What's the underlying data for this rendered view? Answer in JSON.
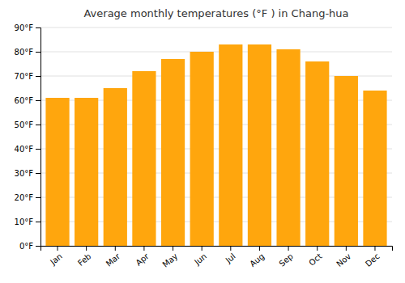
{
  "chart_data": {
    "type": "bar",
    "title": "Average monthly temperatures (°F ) in Chang-hua",
    "categories": [
      "Jan",
      "Feb",
      "Mar",
      "Apr",
      "May",
      "Jun",
      "Jul",
      "Aug",
      "Sep",
      "Oct",
      "Nov",
      "Dec"
    ],
    "values": [
      61,
      61,
      65,
      72,
      77,
      80,
      83,
      83,
      81,
      76,
      70,
      64
    ],
    "color": "#ffa60d",
    "ylim": [
      0,
      90
    ],
    "yticks": [
      {
        "value": 0,
        "label": "0°F"
      },
      {
        "value": 10,
        "label": "10°F"
      },
      {
        "value": 20,
        "label": "20°F"
      },
      {
        "value": 30,
        "label": "30°F"
      },
      {
        "value": 40,
        "label": "40°F"
      },
      {
        "value": 50,
        "label": "50°F"
      },
      {
        "value": 60,
        "label": "60°F"
      },
      {
        "value": 70,
        "label": "70°F"
      },
      {
        "value": 80,
        "label": "80°F"
      },
      {
        "value": 90,
        "label": "90°F"
      }
    ],
    "grid": true
  }
}
